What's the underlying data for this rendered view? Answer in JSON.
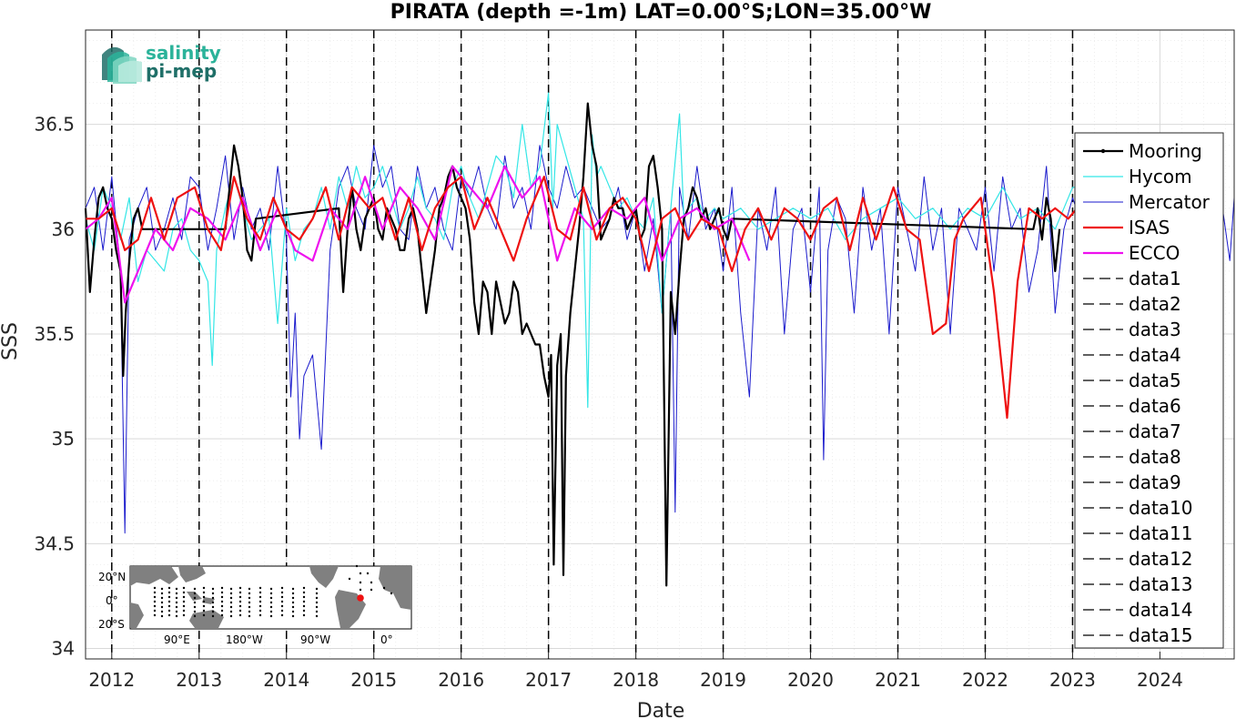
{
  "chart_data": {
    "type": "line",
    "title": "PIRATA (depth =-1m) LAT=0.00°S;LON=35.00°W",
    "xlabel": "Date",
    "ylabel": "SSS",
    "xlim": [
      2011.7,
      2024.85
    ],
    "ylim": [
      33.95,
      36.95
    ],
    "grid": true,
    "legend_position": "right",
    "x_ticks": [
      "2012",
      "2013",
      "2014",
      "2015",
      "2016",
      "2017",
      "2018",
      "2019",
      "2020",
      "2021",
      "2022",
      "2023",
      "2024"
    ],
    "y_ticks": [
      "34",
      "34.5",
      "35",
      "35.5",
      "36",
      "36.5"
    ],
    "vlines": [
      2012,
      2013,
      2014,
      2015,
      2016,
      2017,
      2018,
      2019,
      2020,
      2021,
      2022,
      2023
    ],
    "series": [
      {
        "name": "Mooring",
        "color": "#000000",
        "width": 2.2,
        "x": [
          2011.7,
          2011.75,
          2011.8,
          2011.85,
          2011.9,
          2011.95,
          2012.0,
          2012.05,
          2012.1,
          2012.13,
          2012.16,
          2012.2,
          2012.25,
          2012.3,
          2012.35,
          2013.3,
          2013.35,
          2013.4,
          2013.45,
          2013.5,
          2013.55,
          2013.6,
          2013.65,
          2014.6,
          2014.65,
          2014.7,
          2014.75,
          2014.8,
          2014.85,
          2014.9,
          2014.95,
          2015.0,
          2015.05,
          2015.1,
          2015.15,
          2015.2,
          2015.25,
          2015.3,
          2015.35,
          2015.4,
          2015.45,
          2015.5,
          2015.55,
          2015.6,
          2015.65,
          2015.7,
          2015.75,
          2015.8,
          2015.85,
          2015.9,
          2015.95,
          2016.0,
          2016.05,
          2016.1,
          2016.15,
          2016.2,
          2016.25,
          2016.3,
          2016.35,
          2016.4,
          2016.45,
          2016.5,
          2016.55,
          2016.6,
          2016.65,
          2016.7,
          2016.75,
          2016.8,
          2016.85,
          2016.9,
          2016.95,
          2017.0,
          2017.03,
          2017.06,
          2017.1,
          2017.14,
          2017.17,
          2017.2,
          2017.25,
          2017.3,
          2017.35,
          2017.4,
          2017.45,
          2017.5,
          2017.55,
          2017.6,
          2017.65,
          2017.7,
          2017.75,
          2017.8,
          2017.85,
          2017.9,
          2017.95,
          2018.0,
          2018.05,
          2018.1,
          2018.15,
          2018.2,
          2018.25,
          2018.3,
          2018.35,
          2018.4,
          2018.45,
          2018.5,
          2018.55,
          2018.6,
          2018.65,
          2018.7,
          2018.75,
          2018.8,
          2018.85,
          2018.9,
          2018.95,
          2019.0,
          2019.05,
          2019.1,
          2022.55,
          2022.6,
          2022.65,
          2022.7,
          2022.75,
          2022.8,
          2022.85
        ],
        "y": [
          36.1,
          35.7,
          35.95,
          36.15,
          36.2,
          36.1,
          36.05,
          35.9,
          35.8,
          35.3,
          35.6,
          35.85,
          36.05,
          36.1,
          36.0,
          36.0,
          36.2,
          36.4,
          36.3,
          36.15,
          35.9,
          35.85,
          36.05,
          36.1,
          35.7,
          36.0,
          36.2,
          36.0,
          35.9,
          36.05,
          36.1,
          36.15,
          36.0,
          35.95,
          36.1,
          36.05,
          36.0,
          35.9,
          35.9,
          36.05,
          36.1,
          36.0,
          35.8,
          35.6,
          35.75,
          35.9,
          36.1,
          36.15,
          36.25,
          36.3,
          36.2,
          36.15,
          36.1,
          35.95,
          35.65,
          35.5,
          35.75,
          35.7,
          35.5,
          35.75,
          35.65,
          35.55,
          35.6,
          35.75,
          35.7,
          35.5,
          35.55,
          35.5,
          35.45,
          35.45,
          35.3,
          35.2,
          35.4,
          34.4,
          35.35,
          35.5,
          34.35,
          35.3,
          35.6,
          35.8,
          36.0,
          36.25,
          36.6,
          36.4,
          36.3,
          35.95,
          36.0,
          36.05,
          36.15,
          36.1,
          36.1,
          36.0,
          36.05,
          36.1,
          35.95,
          36.0,
          36.3,
          36.35,
          36.2,
          36.0,
          34.3,
          35.7,
          35.5,
          35.8,
          36.05,
          36.1,
          36.2,
          36.15,
          36.05,
          36.1,
          36.0,
          36.05,
          36.1,
          36.0,
          35.95,
          36.05,
          36.0,
          36.1,
          35.95,
          36.15,
          36.05,
          35.8,
          36.0
        ]
      },
      {
        "name": "Hycom",
        "color": "#33e6e6",
        "width": 1.2,
        "x": [
          2011.7,
          2011.8,
          2011.9,
          2012.0,
          2012.1,
          2012.2,
          2012.3,
          2012.4,
          2012.5,
          2012.6,
          2012.7,
          2012.8,
          2012.9,
          2013.0,
          2013.1,
          2013.15,
          2013.2,
          2013.3,
          2013.4,
          2013.5,
          2013.6,
          2013.7,
          2013.8,
          2013.9,
          2014.0,
          2014.1,
          2014.2,
          2014.3,
          2014.4,
          2014.5,
          2014.6,
          2014.7,
          2014.8,
          2014.9,
          2015.0,
          2015.1,
          2015.2,
          2015.3,
          2015.4,
          2015.5,
          2015.6,
          2015.7,
          2015.8,
          2015.9,
          2016.0,
          2016.1,
          2016.2,
          2016.3,
          2016.4,
          2016.5,
          2016.6,
          2016.7,
          2016.8,
          2016.9,
          2017.0,
          2017.05,
          2017.1,
          2017.2,
          2017.3,
          2017.4,
          2017.45,
          2017.5,
          2017.55,
          2017.6,
          2017.7,
          2017.8,
          2017.9,
          2018.0,
          2018.1,
          2018.2,
          2018.3,
          2018.4,
          2018.5,
          2018.55,
          2018.6,
          2018.7,
          2018.8,
          2018.9,
          2019.0,
          2019.2,
          2019.4,
          2019.6,
          2019.8,
          2020.0,
          2020.2,
          2020.4,
          2020.6,
          2020.8,
          2021.0,
          2021.2,
          2021.4,
          2021.6,
          2021.8,
          2022.0,
          2022.2,
          2022.4,
          2022.6,
          2022.8,
          2023.0,
          2023.05
        ],
        "y": [
          36.05,
          35.9,
          36.2,
          36.1,
          35.95,
          36.15,
          35.75,
          35.9,
          35.85,
          35.8,
          36.0,
          36.05,
          35.9,
          35.85,
          35.75,
          35.35,
          35.9,
          36.1,
          36.25,
          36.1,
          35.95,
          36.0,
          36.05,
          35.55,
          36.1,
          35.85,
          36.0,
          36.05,
          36.2,
          36.0,
          36.25,
          36.1,
          36.3,
          36.15,
          36.2,
          36.3,
          36.15,
          36.0,
          36.1,
          36.25,
          36.1,
          36.05,
          35.95,
          36.2,
          36.3,
          36.15,
          36.05,
          36.2,
          36.35,
          36.3,
          36.15,
          36.5,
          36.2,
          36.3,
          36.65,
          36.1,
          36.5,
          36.35,
          36.2,
          36.05,
          35.15,
          36.45,
          36.25,
          36.3,
          36.2,
          36.1,
          36.15,
          36.05,
          36.0,
          36.15,
          35.6,
          36.1,
          36.55,
          36.05,
          36.1,
          36.15,
          36.05,
          36.1,
          36.05,
          36.1,
          36.0,
          36.05,
          36.1,
          36.05,
          36.1,
          35.95,
          36.05,
          36.1,
          36.15,
          36.05,
          36.1,
          36.0,
          36.1,
          36.05,
          36.2,
          36.05,
          36.1,
          36.0,
          36.2,
          36.2
        ]
      },
      {
        "name": "Mercator",
        "color": "#1a1acc",
        "width": 1,
        "x": [
          2011.7,
          2011.8,
          2011.9,
          2012.0,
          2012.1,
          2012.15,
          2012.2,
          2012.3,
          2012.4,
          2012.5,
          2012.6,
          2012.7,
          2012.8,
          2012.9,
          2013.0,
          2013.1,
          2013.2,
          2013.3,
          2013.4,
          2013.5,
          2013.6,
          2013.7,
          2013.8,
          2013.9,
          2014.0,
          2014.05,
          2014.1,
          2014.15,
          2014.2,
          2014.3,
          2014.4,
          2014.5,
          2014.6,
          2014.7,
          2014.8,
          2014.9,
          2015.0,
          2015.1,
          2015.2,
          2015.3,
          2015.4,
          2015.5,
          2015.6,
          2015.7,
          2015.8,
          2015.9,
          2016.0,
          2016.1,
          2016.2,
          2016.3,
          2016.4,
          2016.5,
          2016.6,
          2016.7,
          2016.8,
          2016.9,
          2017.0,
          2017.1,
          2017.2,
          2017.3,
          2017.4,
          2017.5,
          2017.6,
          2017.7,
          2017.8,
          2017.9,
          2018.0,
          2018.1,
          2018.2,
          2018.3,
          2018.4,
          2018.45,
          2018.5,
          2018.6,
          2018.7,
          2018.8,
          2018.9,
          2019.0,
          2019.1,
          2019.2,
          2019.3,
          2019.4,
          2019.5,
          2019.6,
          2019.7,
          2019.8,
          2019.9,
          2020.0,
          2020.1,
          2020.15,
          2020.2,
          2020.3,
          2020.4,
          2020.5,
          2020.6,
          2020.7,
          2020.8,
          2020.9,
          2021.0,
          2021.1,
          2021.2,
          2021.3,
          2021.4,
          2021.5,
          2021.6,
          2021.7,
          2021.8,
          2021.9,
          2022.0,
          2022.1,
          2022.2,
          2022.3,
          2022.4,
          2022.5,
          2022.6,
          2022.7,
          2022.8,
          2022.9,
          2023.0,
          2023.2,
          2023.4,
          2023.6,
          2023.8,
          2024.0,
          2024.2,
          2024.4,
          2024.6,
          2024.7,
          2024.8,
          2024.85
        ],
        "y": [
          36.1,
          36.2,
          35.9,
          36.25,
          35.8,
          34.55,
          35.95,
          36.1,
          36.2,
          35.9,
          36.0,
          36.15,
          35.95,
          36.25,
          36.2,
          35.9,
          36.1,
          36.35,
          35.95,
          36.2,
          36.0,
          36.1,
          35.9,
          36.3,
          35.95,
          35.2,
          35.6,
          35.0,
          35.3,
          35.4,
          34.95,
          35.9,
          36.2,
          36.3,
          36.1,
          36.0,
          36.4,
          36.2,
          36.3,
          36.0,
          35.95,
          36.3,
          36.1,
          36.2,
          36.0,
          35.9,
          36.25,
          36.15,
          36.3,
          36.1,
          36.0,
          36.35,
          36.1,
          36.2,
          36.0,
          36.4,
          36.2,
          36.1,
          36.3,
          36.15,
          36.2,
          36.1,
          36.0,
          36.05,
          36.2,
          35.95,
          36.1,
          35.8,
          36.05,
          35.6,
          36.1,
          34.65,
          36.2,
          35.95,
          36.3,
          36.0,
          36.1,
          35.8,
          36.2,
          35.6,
          35.2,
          36.1,
          35.9,
          36.2,
          35.5,
          36.0,
          36.1,
          35.7,
          36.2,
          34.9,
          35.9,
          36.15,
          36.05,
          35.6,
          36.2,
          35.9,
          36.1,
          35.5,
          36.2,
          36.0,
          35.8,
          36.25,
          35.9,
          36.1,
          35.5,
          36.1,
          36.0,
          35.9,
          36.2,
          35.8,
          36.25,
          36.0,
          36.1,
          35.7,
          35.9,
          36.3,
          35.6,
          36.0,
          36.15,
          35.9,
          36.2,
          36.0,
          36.25,
          35.9,
          36.1,
          36.2,
          35.95,
          36.15,
          35.85,
          36.15
        ]
      },
      {
        "name": "ISAS",
        "color": "#ee1111",
        "width": 2.2,
        "x": [
          2011.7,
          2011.85,
          2012.0,
          2012.15,
          2012.3,
          2012.45,
          2012.6,
          2012.75,
          2012.95,
          2013.1,
          2013.25,
          2013.4,
          2013.55,
          2013.7,
          2013.85,
          2014.0,
          2014.15,
          2014.3,
          2014.45,
          2014.6,
          2014.75,
          2014.95,
          2015.1,
          2015.25,
          2015.4,
          2015.55,
          2015.7,
          2015.85,
          2016.0,
          2016.15,
          2016.3,
          2016.45,
          2016.6,
          2016.75,
          2016.95,
          2017.1,
          2017.25,
          2017.4,
          2017.55,
          2017.7,
          2017.85,
          2018.0,
          2018.15,
          2018.3,
          2018.45,
          2018.6,
          2018.75,
          2018.95,
          2019.1,
          2019.25,
          2019.4,
          2019.55,
          2019.7,
          2019.85,
          2020.0,
          2020.15,
          2020.3,
          2020.45,
          2020.6,
          2020.75,
          2020.95,
          2021.1,
          2021.25,
          2021.4,
          2021.55,
          2021.65,
          2021.75,
          2021.95,
          2022.1,
          2022.25,
          2022.37,
          2022.5,
          2022.65,
          2022.8,
          2022.95,
          2023.05
        ],
        "y": [
          36.05,
          36.05,
          36.1,
          35.9,
          35.95,
          36.15,
          35.95,
          36.15,
          36.2,
          36.0,
          35.9,
          36.25,
          36.05,
          35.95,
          36.15,
          36.0,
          35.95,
          36.05,
          36.2,
          35.95,
          36.2,
          36.1,
          36.15,
          35.95,
          36.15,
          35.9,
          36.1,
          36.2,
          36.25,
          36.0,
          36.15,
          36.0,
          35.85,
          36.05,
          36.25,
          36.0,
          35.95,
          36.2,
          35.95,
          36.1,
          36.15,
          36.05,
          35.8,
          36.05,
          36.1,
          35.95,
          36.05,
          36.0,
          35.8,
          36.0,
          36.1,
          35.95,
          36.1,
          36.05,
          35.95,
          36.1,
          36.15,
          35.9,
          36.15,
          35.95,
          36.2,
          36.0,
          35.95,
          35.5,
          35.55,
          35.95,
          36.05,
          36.15,
          35.7,
          35.1,
          35.75,
          36.1,
          36.05,
          36.1,
          36.05,
          36.1
        ]
      },
      {
        "name": "ECCO",
        "color": "#ee11ee",
        "width": 2.2,
        "x": [
          2011.7,
          2011.85,
          2012.0,
          2012.15,
          2012.3,
          2012.5,
          2012.7,
          2012.9,
          2013.1,
          2013.3,
          2013.5,
          2013.7,
          2013.9,
          2014.1,
          2014.3,
          2014.5,
          2014.7,
          2014.9,
          2015.1,
          2015.3,
          2015.5,
          2015.7,
          2015.9,
          2016.1,
          2016.3,
          2016.5,
          2016.7,
          2016.9,
          2017.1,
          2017.3,
          2017.5,
          2017.7,
          2017.9,
          2018.1,
          2018.3,
          2018.5,
          2018.7,
          2018.9,
          2019.1,
          2019.3
        ],
        "y": [
          36.0,
          36.05,
          36.15,
          35.65,
          35.8,
          36.0,
          35.9,
          36.1,
          36.05,
          35.95,
          36.15,
          35.9,
          36.1,
          35.9,
          35.85,
          36.1,
          36.0,
          36.25,
          36.0,
          36.2,
          36.1,
          35.95,
          36.3,
          36.2,
          36.1,
          36.3,
          36.15,
          36.25,
          35.85,
          36.1,
          36.0,
          36.1,
          36.05,
          36.15,
          35.85,
          36.05,
          36.1,
          36.0,
          36.05,
          35.85
        ]
      }
    ],
    "dashed_series": [
      "data1",
      "data2",
      "data3",
      "data4",
      "data5",
      "data6",
      "data7",
      "data8",
      "data9",
      "data10",
      "data11",
      "data12",
      "data13",
      "data14",
      "data15"
    ]
  },
  "logo": {
    "line1": "salinity",
    "line2": "pi-mep"
  },
  "inset_map": {
    "y_labels": [
      "20°N",
      "0°",
      "20°S"
    ],
    "x_labels": [
      "90°E",
      "180°W",
      "90°W",
      "0°"
    ],
    "land_color": "#808080",
    "ocean_color": "#ffffff",
    "marker_color": "#ee1111"
  }
}
